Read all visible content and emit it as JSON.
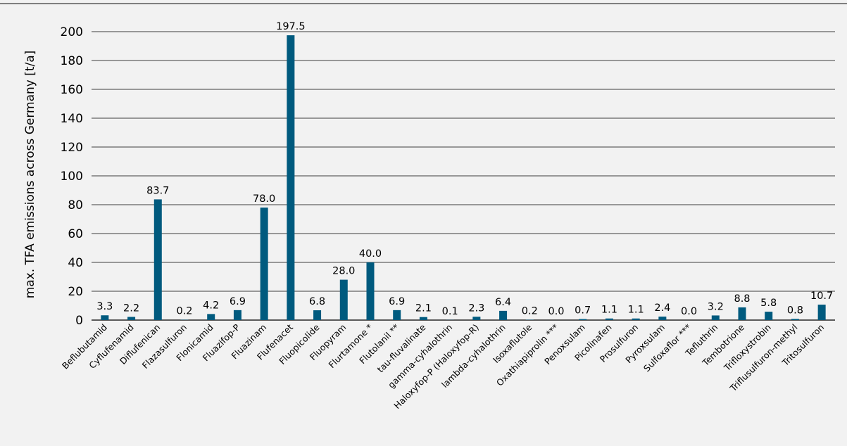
{
  "chart_data": {
    "type": "bar",
    "title": "",
    "xlabel": "",
    "ylabel": "max. TFA emissions across Germany [t/a]",
    "ylim": [
      0,
      200
    ],
    "yticks": [
      0,
      20,
      40,
      60,
      80,
      100,
      120,
      140,
      160,
      180,
      200
    ],
    "grid": "horizontal",
    "legend": "none",
    "bar_color": "#005a7e",
    "categories": [
      "Beflubutamid",
      "Cyflufenamid",
      "Diflufenican",
      "Flazasulfuron",
      "Flonicamid",
      "Fluazifop-P",
      "Fluazinam",
      "Flufenacet",
      "Fluopicolide",
      "Fluopyram",
      "Flurtamone *",
      "Flutolanil **",
      "tau-fluvalinate",
      "gamma-cyhalothrin",
      "Haloxyfop-P (Haloxyfop-R)",
      "lambda-cyhalothrin",
      "Isoxaflutole",
      "Oxathiapiprolin ***",
      "Penoxsulam",
      "Picolinafen",
      "Prosulfuron",
      "Pyroxsulam",
      "Sulfoxaflor ***",
      "Tefluthrin",
      "Tembotrione",
      "Trifloxystrobin",
      "Triflusulfuron-methyl",
      "Tritosulfuron"
    ],
    "values": [
      3.3,
      2.2,
      83.7,
      0.2,
      4.2,
      6.9,
      78.0,
      197.5,
      6.8,
      28.0,
      40.0,
      6.9,
      2.1,
      0.1,
      2.3,
      6.4,
      0.2,
      0.0,
      0.7,
      1.1,
      1.1,
      2.4,
      0.0,
      3.2,
      8.8,
      5.8,
      0.8,
      10.7
    ],
    "value_labels": [
      "3.3",
      "2.2",
      "83.7",
      "0.2",
      "4.2",
      "6.9",
      "78.0",
      "197.5",
      "6.8",
      "28.0",
      "40.0",
      "6.9",
      "2.1",
      "0.1",
      "2.3",
      "6.4",
      "0.2",
      "0.0",
      "0.7",
      "1.1",
      "1.1",
      "2.4",
      "0.0",
      "3.2",
      "8.8",
      "5.8",
      "0.8",
      "10.7"
    ]
  }
}
